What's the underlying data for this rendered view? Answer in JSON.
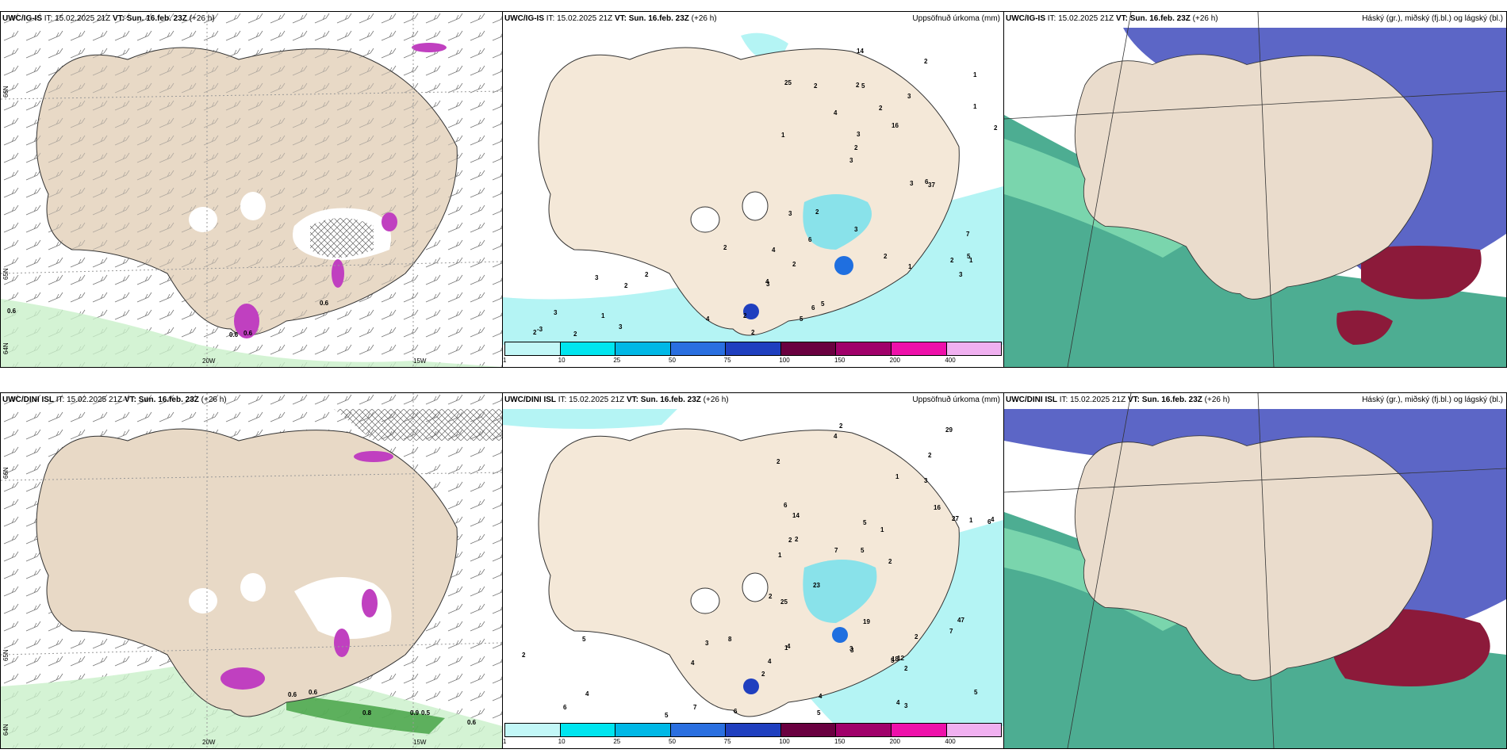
{
  "rows": [
    {
      "model": "UWC/IG-IS",
      "init": "IT: 15.02.2025 21Z",
      "valid": "VT: Sun. 16.feb. 23Z",
      "lead": "(+26 h)",
      "panels": {
        "wind": {
          "axis_labels": [
            "66N",
            "65N",
            "64N",
            "20W",
            "15W"
          ],
          "values": [
            "0.6",
            "0.6",
            "0.6",
            "0.6"
          ]
        },
        "precip": {
          "title": "Uppsöfnuð úrkoma (mm)",
          "values": [
            "1",
            "1",
            "1",
            "3",
            "3",
            "2",
            "2",
            "2",
            "3",
            "4",
            "4",
            "6",
            "5",
            "16",
            "37",
            "25",
            "14",
            "2",
            "3",
            "1",
            "2",
            "3",
            "3",
            "2",
            "2",
            "2",
            "2",
            "7",
            "6",
            "2",
            "2",
            "3",
            "6",
            "3",
            "3",
            "4",
            "-3",
            "4",
            "3",
            "3",
            "1",
            "5",
            "5",
            "5",
            "1",
            "2",
            "2",
            "2",
            "2",
            "2",
            "2"
          ]
        },
        "cloud": {
          "title": "Háský (gr.), miðský (fj.bl.) og lágský (bl.)"
        }
      }
    },
    {
      "model": "UWC/DINI ISL",
      "init": "IT: 15.02.2025 21Z",
      "valid": "VT: Sun. 16.feb. 23Z",
      "lead": "(+26 h)",
      "panels": {
        "wind": {
          "axis_labels": [
            "66N",
            "65N",
            "64N",
            "20W",
            "15W"
          ],
          "values": [
            "0.6",
            "0.8",
            "0.9",
            "0.5",
            "0.6",
            "0.6"
          ]
        },
        "precip": {
          "title": "Uppsöfnuð úrkoma (mm)",
          "values": [
            "2",
            "2",
            "6",
            "5",
            "2",
            "2",
            "2",
            "3",
            "1",
            "1",
            "1",
            "1",
            "4",
            "7",
            "18",
            "12",
            "19",
            "29",
            "16",
            "23",
            "14",
            "2",
            "4",
            "1",
            "2",
            "6",
            "5",
            "27",
            "47",
            "25",
            "4",
            "4",
            "4",
            "4",
            "4",
            "5",
            "5",
            "7",
            "7",
            "8",
            "6",
            "5",
            "5",
            "5",
            "6",
            "3",
            "3",
            "3",
            "2",
            "2",
            "3",
            "2",
            "4",
            "2"
          ]
        },
        "cloud": {
          "title": "Háský (gr.), miðský (fj.bl.) og lágský (bl.)"
        }
      }
    }
  ],
  "colorbar": {
    "ticks": [
      "1",
      "10",
      "25",
      "50",
      "75",
      "100",
      "150",
      "200",
      "400"
    ],
    "colors": [
      "#c2f7f7",
      "#00e5ef",
      "#00b8e6",
      "#2a6fe0",
      "#1f3fbf",
      "#6a0040",
      "#a0006a",
      "#ee10aa",
      "#f0b0f0"
    ]
  },
  "colors": {
    "land": "#f4e8d8",
    "land_wind": "#e8d9c6",
    "sea_precip": "#b4f4f4",
    "high_cloud": "#2e9f7f",
    "mid_cloud": "#4a55c0",
    "low_cloud": "#8c1a3a",
    "wind_magenta": "#c040c0",
    "wind_green": "#9ae09a"
  }
}
